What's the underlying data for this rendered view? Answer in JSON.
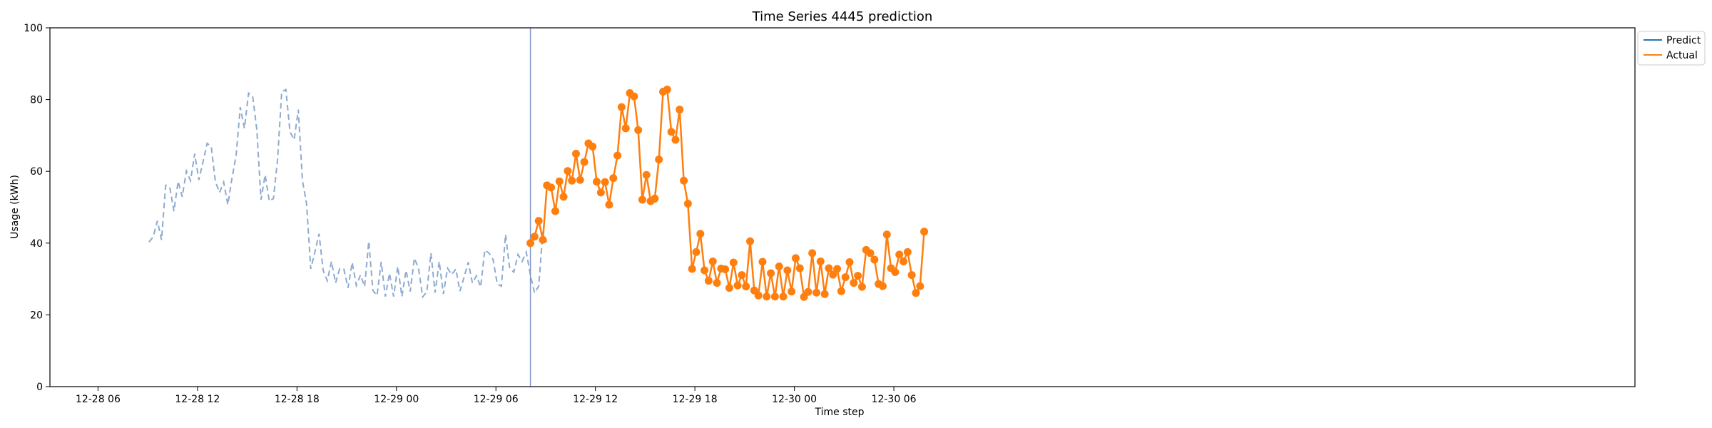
{
  "chart_data": {
    "type": "line",
    "title": "Time Series 4445 prediction",
    "xlabel": "Time step",
    "ylabel": "Usage (kWh)",
    "ylim": [
      0,
      100
    ],
    "y_ticks": [
      0,
      20,
      40,
      60,
      80,
      100
    ],
    "xlim_hours": [
      -20.9,
      74.7
    ],
    "x_ticks": [
      {
        "hour": -18,
        "label": "12-28 06"
      },
      {
        "hour": -12,
        "label": "12-28 12"
      },
      {
        "hour": -6,
        "label": "12-28 18"
      },
      {
        "hour": 0,
        "label": "12-29 00"
      },
      {
        "hour": 6,
        "label": "12-29 06"
      },
      {
        "hour": 12,
        "label": "12-29 12"
      },
      {
        "hour": 18,
        "label": "12-29 18"
      },
      {
        "hour": 24,
        "label": "12-30 00"
      },
      {
        "hour": 30,
        "label": "12-30 06"
      }
    ],
    "start_hour": -14.92,
    "forecast_start_hour": 8.08,
    "step_hours": 0.25,
    "grid": false,
    "legend_position": "top-right",
    "colors": {
      "history": "#8eaad0",
      "predict": "#1f77b4",
      "actual": "#ff7f0e",
      "divider": "#7f96c6"
    },
    "legend": [
      {
        "name": "Predict",
        "color": "#1f77b4"
      },
      {
        "name": "Actual",
        "color": "#ff7f0e"
      }
    ],
    "history": [
      40.3,
      41.8,
      46.2,
      40.9,
      56.1,
      55.5,
      48.9,
      57.2,
      52.9,
      60.1,
      57.4,
      64.9,
      57.6,
      62.6,
      67.8,
      66.9,
      57.1,
      54.1,
      57.0,
      50.7,
      58.1,
      64.4,
      77.9,
      72.0,
      81.8,
      80.9,
      71.5,
      52.1,
      59.0,
      51.7,
      52.4,
      63.3,
      82.2,
      82.8,
      71.0,
      68.8,
      77.2,
      57.4,
      51.0,
      32.8,
      37.5,
      42.6,
      32.4,
      29.5,
      34.9,
      28.9,
      32.9,
      32.7,
      27.5,
      34.6,
      28.2,
      31.1,
      27.9,
      40.5,
      26.8,
      25.4,
      34.8,
      25.1,
      31.6,
      25.1,
      33.5,
      25.1,
      32.4,
      26.5,
      35.8,
      33.0,
      25.0,
      26.4,
      37.2,
      26.2,
      34.9,
      25.8,
      33.0,
      31.2,
      32.8,
      26.6,
      30.5,
      34.7,
      28.9,
      30.9,
      27.8,
      38.1,
      37.2,
      35.4,
      28.6,
      28.0,
      42.4,
      33.0,
      31.9,
      36.8,
      34.9,
      37.5,
      31.1,
      26.1,
      28.0,
      43.2,
      40.0
    ],
    "series": [
      {
        "name": "Actual",
        "values": [
          40.0,
          41.8,
          46.2,
          40.9,
          56.1,
          55.5,
          48.9,
          57.2,
          52.9,
          60.1,
          57.4,
          64.9,
          57.6,
          62.6,
          67.8,
          66.9,
          57.1,
          54.1,
          57.0,
          50.7,
          58.1,
          64.4,
          77.9,
          72.0,
          81.8,
          80.9,
          71.5,
          52.1,
          59.0,
          51.7,
          52.4,
          63.3,
          82.2,
          82.8,
          71.0,
          68.8,
          77.2,
          57.4,
          51.0,
          32.8,
          37.5,
          42.6,
          32.4,
          29.5,
          34.9,
          28.9,
          32.9,
          32.7,
          27.5,
          34.6,
          28.2,
          31.1,
          27.9,
          40.5,
          26.8,
          25.4,
          34.8,
          25.1,
          31.6,
          25.1,
          33.5,
          25.1,
          32.4,
          26.5,
          35.8,
          33.0,
          25.0,
          26.4,
          37.2,
          26.2,
          34.9,
          25.8,
          33.0,
          31.2,
          32.8,
          26.6,
          30.5,
          34.7,
          28.9,
          30.9,
          27.8,
          38.1,
          37.2,
          35.4,
          28.6,
          28.0,
          42.4,
          33.0,
          31.9,
          36.8,
          34.9,
          37.5,
          31.1,
          26.1,
          28.0,
          43.2
        ]
      }
    ]
  }
}
